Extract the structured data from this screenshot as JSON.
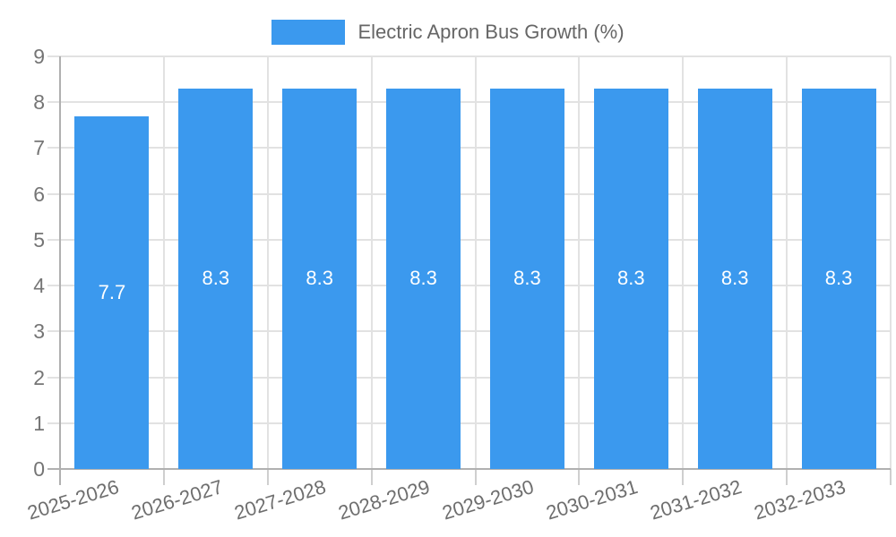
{
  "chart_data": {
    "type": "bar",
    "title": "Electric Apron Bus Growth (%)",
    "categories": [
      "2025-2026",
      "2026-2027",
      "2027-2028",
      "2028-2029",
      "2029-2030",
      "2030-2031",
      "2031-2032",
      "2032-2033"
    ],
    "series": [
      {
        "name": "Electric Apron Bus Growth (%)",
        "values": [
          7.7,
          8.3,
          8.3,
          8.3,
          8.3,
          8.3,
          8.3,
          8.3
        ]
      }
    ],
    "value_labels": [
      "7.7",
      "8.3",
      "8.3",
      "8.3",
      "8.3",
      "8.3",
      "8.3",
      "8.3"
    ],
    "ylim": [
      0,
      9
    ],
    "ytick_step": 1,
    "ytick_labels": [
      "0",
      "1",
      "2",
      "3",
      "4",
      "5",
      "6",
      "7",
      "8",
      "9"
    ],
    "grid": true,
    "legend_position": "top",
    "xlabel": "",
    "ylabel": ""
  },
  "colors": {
    "bar": "#3B99EE",
    "legend_text": "#666666",
    "axis_text": "#757575",
    "grid": "#E2E2E2",
    "axis_line": "#B0B0B0",
    "boundary_tick": "#CFCFCF",
    "value_label": "#FFFFFF",
    "background": "#FFFFFF"
  }
}
